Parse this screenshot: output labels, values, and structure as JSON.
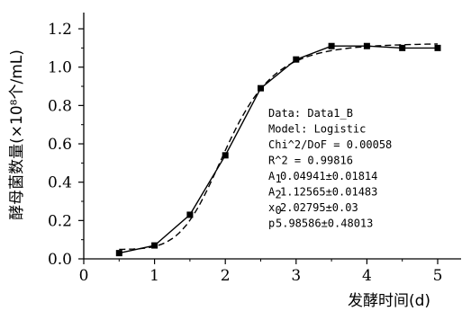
{
  "chart_data": {
    "type": "line",
    "xlabel": "发酵时间(d)",
    "ylabel": "酵母菌数量(×10⁸个/mL)",
    "xlim": [
      0,
      5.4
    ],
    "ylim": [
      0,
      1.25
    ],
    "x_ticks": [
      "0",
      "1",
      "2",
      "3",
      "4",
      "5"
    ],
    "y_ticks": [
      "0.0",
      "0.2",
      "0.4",
      "0.6",
      "0.8",
      "1.0",
      "1.2"
    ],
    "series": [
      {
        "style": "solid-with-square-markers",
        "x": [
          0.5,
          1.0,
          1.5,
          2.0,
          2.5,
          3.0,
          3.5,
          4.0,
          4.5,
          5.0
        ],
        "y": [
          0.03,
          0.07,
          0.23,
          0.54,
          0.89,
          1.04,
          1.11,
          1.11,
          1.1,
          1.1
        ]
      },
      {
        "style": "dashed-fit",
        "model": "logistic",
        "params": {
          "A1": 0.04941,
          "A2": 1.12565,
          "x0": 2.02795,
          "p": 5.98586
        },
        "x_range": [
          0.5,
          5.0
        ]
      }
    ],
    "fit_box": {
      "lines": [
        "Data: Data1_B",
        "Model: Logistic",
        "Chi^2/DoF     = 0.00058",
        "R^2     =  0.99816"
      ],
      "params": [
        {
          "sym": "A",
          "sub": "1",
          "text": " 0.04941±0.01814"
        },
        {
          "sym": "A",
          "sub": "2",
          "text": " 1.12565±0.01483"
        },
        {
          "sym": "x",
          "sub": "0",
          "text": " 2.02795±0.03"
        },
        {
          "sym": "p",
          "sub": "",
          "text": " 5.98586±0.48013"
        }
      ]
    }
  }
}
